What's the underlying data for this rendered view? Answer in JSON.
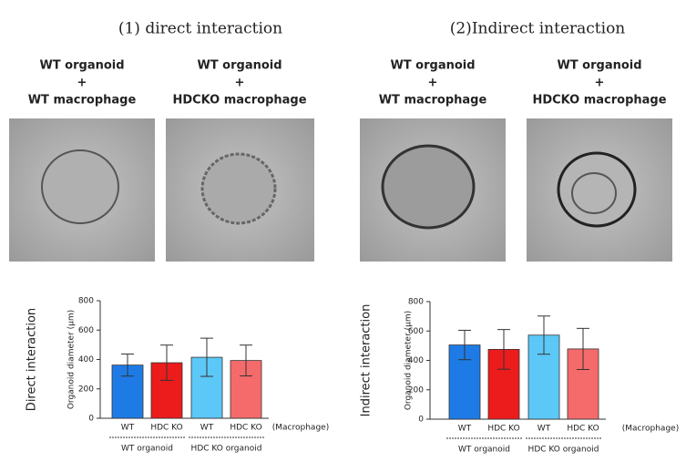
{
  "sections": [
    {
      "heading": "(1) direct interaction",
      "images": [
        {
          "caption": [
            "WT organoid",
            "+",
            "WT macrophage"
          ]
        },
        {
          "caption": [
            "WT organoid",
            "+",
            "HDCKO macrophage"
          ]
        }
      ]
    },
    {
      "heading": "(2)Indirect interaction",
      "images": [
        {
          "caption": [
            "WT organoid",
            "+",
            "WT macrophage"
          ]
        },
        {
          "caption": [
            "WT organoid",
            "+",
            "HDCKO macrophage"
          ]
        }
      ]
    }
  ],
  "chart_data": [
    {
      "type": "bar",
      "side_label": "Direct interaction",
      "ylabel": "Organoid diameter (μm)",
      "categories": [
        "WT",
        "HDC KO",
        "WT",
        "HDC KO"
      ],
      "x_note": "(Macrophage)",
      "groups": [
        "WT organoid",
        "HDC KO organoid"
      ],
      "values": [
        362,
        378,
        415,
        393
      ],
      "errors": [
        75,
        120,
        130,
        105
      ],
      "colors": [
        "#1e7be6",
        "#ec1c1c",
        "#5cc8f7",
        "#f56b6b"
      ],
      "ylim": [
        0,
        800
      ],
      "yticks": [
        0,
        200,
        400,
        600,
        800
      ]
    },
    {
      "type": "bar",
      "side_label": "Indirect interaction",
      "ylabel": "Organoid diameter (μm)",
      "categories": [
        "WT",
        "HDC KO",
        "WT",
        "HDC KO"
      ],
      "x_note": "(Macrophage)",
      "groups": [
        "WT organoid",
        "HDC KO organoid"
      ],
      "values": [
        505,
        475,
        572,
        478
      ],
      "errors": [
        100,
        135,
        130,
        140
      ],
      "colors": [
        "#1e7be6",
        "#ec1c1c",
        "#5cc8f7",
        "#f56b6b"
      ],
      "ylim": [
        0,
        800
      ],
      "yticks": [
        0,
        200,
        400,
        600,
        800
      ]
    }
  ]
}
